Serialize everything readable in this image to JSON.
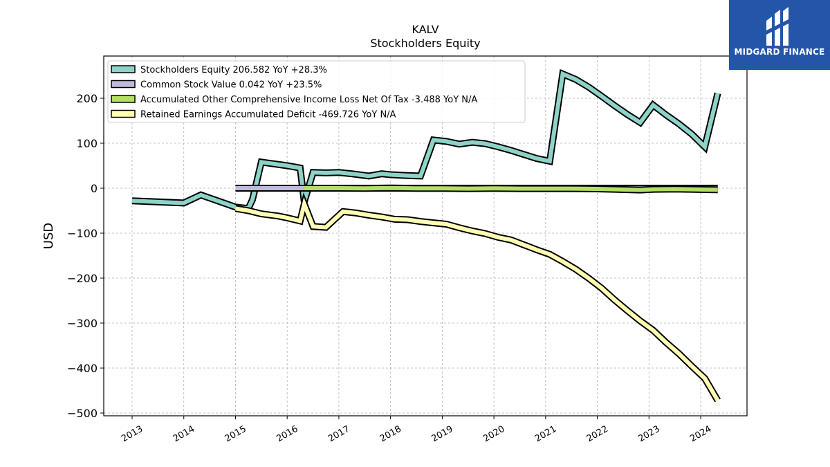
{
  "chart_data": {
    "type": "line",
    "title": "KALV",
    "subtitle": "Stockholders  Equity",
    "ylabel": "USD",
    "xlabel": "",
    "ylim": [
      -505,
      295
    ],
    "xlim": [
      2012.75,
      2024.9
    ],
    "yticks": [
      200,
      100,
      0,
      -100,
      -200,
      -300,
      -400,
      -500
    ],
    "ytick_labels": [
      "200",
      "100",
      "0",
      "−100",
      "−200",
      "−300",
      "−400",
      "−500"
    ],
    "xticks": [
      2013,
      2014,
      2015,
      2016,
      2017,
      2018,
      2019,
      2020,
      2021,
      2022,
      2023,
      2024
    ],
    "xtick_labels": [
      "2013",
      "2014",
      "2015",
      "2016",
      "2017",
      "2018",
      "2019",
      "2020",
      "2021",
      "2022",
      "2023",
      "2024"
    ],
    "grid": true,
    "legend_position": "top-left",
    "series": [
      {
        "name": "Stockholders Equity  206.582 YoY +28.3%",
        "color": "#8dd3c7",
        "points": [
          [
            2013.0,
            -28
          ],
          [
            2014.0,
            -33
          ],
          [
            2014.33,
            -15
          ],
          [
            2015.0,
            -42
          ],
          [
            2015.25,
            -45
          ],
          [
            2015.33,
            -25
          ],
          [
            2015.5,
            58
          ],
          [
            2016.0,
            50
          ],
          [
            2016.25,
            45
          ],
          [
            2016.33,
            -30
          ],
          [
            2016.5,
            35
          ],
          [
            2016.75,
            34
          ],
          [
            2017.0,
            35
          ],
          [
            2017.25,
            32
          ],
          [
            2017.58,
            27
          ],
          [
            2017.83,
            32
          ],
          [
            2018.0,
            30
          ],
          [
            2018.33,
            28
          ],
          [
            2018.58,
            27
          ],
          [
            2018.83,
            107
          ],
          [
            2019.08,
            104
          ],
          [
            2019.33,
            98
          ],
          [
            2019.58,
            102
          ],
          [
            2019.83,
            99
          ],
          [
            2020.08,
            92
          ],
          [
            2020.33,
            84
          ],
          [
            2020.58,
            75
          ],
          [
            2020.83,
            66
          ],
          [
            2021.08,
            60
          ],
          [
            2021.33,
            254
          ],
          [
            2021.58,
            242
          ],
          [
            2021.83,
            225
          ],
          [
            2022.08,
            205
          ],
          [
            2022.33,
            184
          ],
          [
            2022.58,
            164
          ],
          [
            2022.83,
            146
          ],
          [
            2023.08,
            185
          ],
          [
            2023.33,
            163
          ],
          [
            2023.58,
            143
          ],
          [
            2023.83,
            120
          ],
          [
            2024.08,
            92
          ],
          [
            2024.33,
            211
          ]
        ]
      },
      {
        "name": "Common Stock Value  0.042 YoY +23.5%",
        "color": "#bebada",
        "points": [
          [
            2015.0,
            0.04
          ],
          [
            2015.5,
            0.04
          ],
          [
            2016.0,
            0.04
          ],
          [
            2016.33,
            0.04
          ],
          [
            2017.0,
            0.04
          ],
          [
            2018.0,
            0.04
          ],
          [
            2019.0,
            0.04
          ],
          [
            2020.0,
            0.04
          ],
          [
            2021.0,
            0.04
          ],
          [
            2022.0,
            0.04
          ],
          [
            2023.0,
            0.04
          ],
          [
            2024.0,
            0.04
          ],
          [
            2024.33,
            0.04
          ]
        ]
      },
      {
        "name": "Accumulated Other Comprehensive Income Loss Net Of Tax  -3.488 YoY N/A",
        "color": "#b3de69",
        "points": [
          [
            2016.33,
            0
          ],
          [
            2017.0,
            0
          ],
          [
            2017.5,
            -0.5
          ],
          [
            2018.0,
            0.5
          ],
          [
            2018.5,
            -0.5
          ],
          [
            2019.0,
            -0.5
          ],
          [
            2019.5,
            -1
          ],
          [
            2020.0,
            -0.5
          ],
          [
            2020.5,
            -1
          ],
          [
            2021.0,
            -1
          ],
          [
            2021.5,
            -1
          ],
          [
            2022.0,
            -1.5
          ],
          [
            2022.33,
            -2.5
          ],
          [
            2022.83,
            -4
          ],
          [
            2023.08,
            -2.5
          ],
          [
            2023.5,
            -2
          ],
          [
            2024.0,
            -3
          ],
          [
            2024.33,
            -3.5
          ]
        ]
      },
      {
        "name": "Retained Earnings Accumulated Deficit  -469.726 YoY N/A",
        "color": "#ffffb3",
        "points": [
          [
            2015.0,
            -45
          ],
          [
            2015.25,
            -50
          ],
          [
            2015.5,
            -57
          ],
          [
            2015.83,
            -62
          ],
          [
            2016.0,
            -66
          ],
          [
            2016.25,
            -73
          ],
          [
            2016.33,
            -35
          ],
          [
            2016.5,
            -85
          ],
          [
            2016.75,
            -87
          ],
          [
            2017.08,
            -52
          ],
          [
            2017.33,
            -55
          ],
          [
            2017.58,
            -60
          ],
          [
            2017.83,
            -64
          ],
          [
            2018.08,
            -69
          ],
          [
            2018.33,
            -70
          ],
          [
            2018.58,
            -74
          ],
          [
            2018.83,
            -77
          ],
          [
            2019.08,
            -80
          ],
          [
            2019.33,
            -88
          ],
          [
            2019.58,
            -95
          ],
          [
            2019.83,
            -101
          ],
          [
            2020.08,
            -109
          ],
          [
            2020.33,
            -115
          ],
          [
            2020.58,
            -126
          ],
          [
            2020.83,
            -137
          ],
          [
            2021.08,
            -147
          ],
          [
            2021.33,
            -163
          ],
          [
            2021.58,
            -180
          ],
          [
            2021.83,
            -200
          ],
          [
            2022.08,
            -222
          ],
          [
            2022.33,
            -248
          ],
          [
            2022.58,
            -272
          ],
          [
            2022.83,
            -295
          ],
          [
            2023.08,
            -316
          ],
          [
            2023.33,
            -343
          ],
          [
            2023.58,
            -368
          ],
          [
            2023.83,
            -396
          ],
          [
            2024.08,
            -423
          ],
          [
            2024.33,
            -472
          ]
        ]
      }
    ]
  },
  "logo": {
    "text": "MIDGARD FINANCE",
    "icon": "midgard-logo-icon",
    "background": "#2456a8"
  }
}
